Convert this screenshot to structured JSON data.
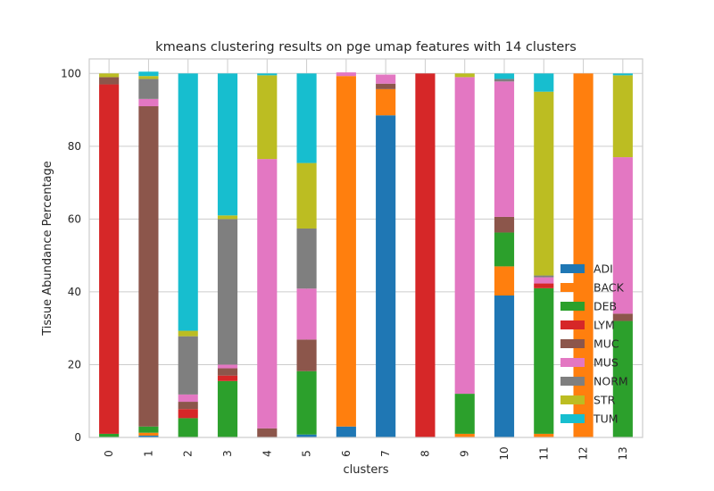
{
  "chart_data": {
    "type": "bar",
    "stacked": true,
    "title": "kmeans clustering results on pge umap features with 14 clusters",
    "xlabel": "clusters",
    "ylabel": "Tissue Abundance Percentage",
    "ylim": [
      0,
      104
    ],
    "yticks": [
      0,
      20,
      40,
      60,
      80,
      100
    ],
    "grid": true,
    "legend_position": "lower-right",
    "categories": [
      "0",
      "1",
      "2",
      "3",
      "4",
      "5",
      "6",
      "7",
      "8",
      "9",
      "10",
      "11",
      "12",
      "13"
    ],
    "series": [
      {
        "name": "ADI",
        "color": "#1f77b4",
        "values": [
          0,
          0.5,
          0,
          0,
          0,
          0.8,
          3.0,
          88.5,
          0,
          0,
          39.0,
          0,
          0,
          0
        ]
      },
      {
        "name": "BACK",
        "color": "#ff7f0e",
        "values": [
          0,
          0.8,
          0,
          0,
          0,
          0,
          96.3,
          7.2,
          0,
          1.0,
          8.0,
          1.0,
          100,
          0
        ]
      },
      {
        "name": "DEB",
        "color": "#2ca02c",
        "values": [
          1.0,
          1.7,
          5.3,
          15.5,
          0,
          17.4,
          0,
          0,
          0,
          11.0,
          9.3,
          40.0,
          0,
          32.0
        ]
      },
      {
        "name": "LYM",
        "color": "#d62728",
        "values": [
          96.0,
          0,
          2.5,
          1.5,
          0,
          0,
          0,
          0,
          100,
          0,
          0,
          1.3,
          0,
          0
        ]
      },
      {
        "name": "MUC",
        "color": "#8c564b",
        "values": [
          2.0,
          88.0,
          2.0,
          2.0,
          2.5,
          8.7,
          0,
          1.5,
          0,
          0,
          4.3,
          0,
          0,
          2.0
        ]
      },
      {
        "name": "MUS",
        "color": "#e377c2",
        "values": [
          0,
          2.0,
          2.0,
          1.0,
          74.0,
          14.0,
          1.0,
          2.5,
          0,
          87.0,
          37.2,
          1.7,
          0,
          43.0
        ]
      },
      {
        "name": "NORM",
        "color": "#7f7f7f",
        "values": [
          0,
          5.5,
          16.0,
          40.0,
          0,
          16.5,
          0,
          0,
          0,
          0,
          0.7,
          0.5,
          0,
          0
        ]
      },
      {
        "name": "STR",
        "color": "#bcbd22",
        "values": [
          1.0,
          0.8,
          1.5,
          1.0,
          23.0,
          18.0,
          0,
          0,
          0,
          1.0,
          0,
          50.5,
          0,
          22.5
        ]
      },
      {
        "name": "TUM",
        "color": "#17becf",
        "values": [
          0,
          1.2,
          70.7,
          39.0,
          0.5,
          24.6,
          0,
          0,
          0,
          0,
          1.5,
          5.0,
          0,
          0.5
        ]
      }
    ]
  }
}
